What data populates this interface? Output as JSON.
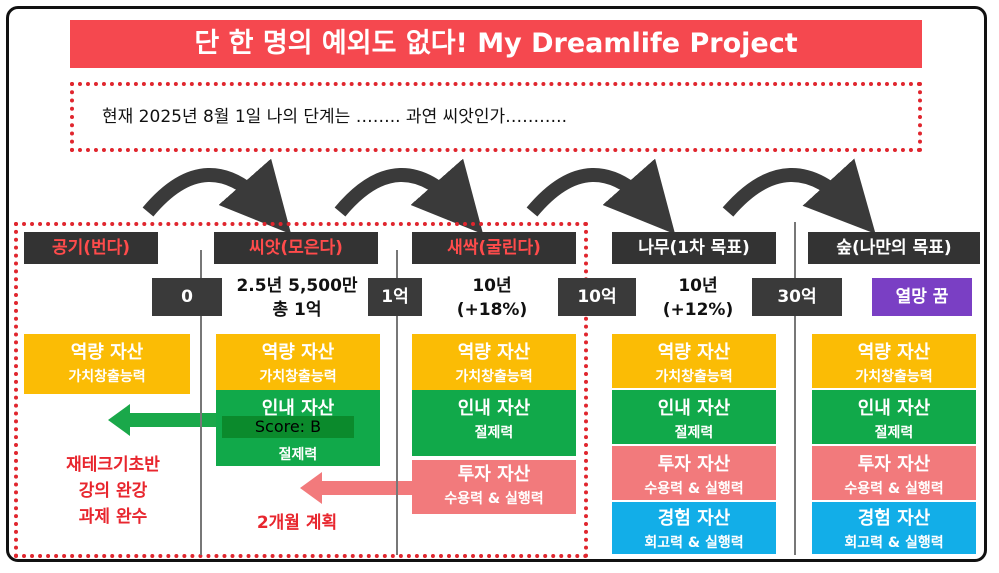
{
  "banner": "단 한 명의 예외도 없다! My Dreamlife Project",
  "status_text": "현재 2025년 8월 1일 나의 단계는 …….. 과연 씨앗인가………..",
  "stages": [
    {
      "title": "공기(번다)"
    },
    {
      "title": "씨앗(모은다)"
    },
    {
      "title": "새싹(굴린다)"
    },
    {
      "title": "나무(1차 목표)"
    },
    {
      "title": "숲(나만의 목표)"
    }
  ],
  "tags": [
    "0",
    "1억",
    "10억",
    "30억",
    "열망 꿈"
  ],
  "stage_info": {
    "seed_line1": "2.5년 5,500만",
    "seed_line2": "총 1억",
    "sprout_line1": "10년",
    "sprout_line2": "(+18%)",
    "tree_line1": "10년",
    "tree_line2": "(+12%)"
  },
  "cards": {
    "capability": {
      "title": "역량 자산",
      "sub": "가치창출능력"
    },
    "patience": {
      "title": "인내 자산",
      "sub": "절제력"
    },
    "investment": {
      "title": "투자 자산",
      "sub": "수용력 & 실행력"
    },
    "experience": {
      "title": "경험 자산",
      "sub": "회고력 & 실행력"
    }
  },
  "score": "Score: B",
  "air_tasks": [
    "재테크기초반",
    "강의 완강",
    "과제 완수"
  ],
  "plan": "2개월 계획",
  "colors": {
    "banner": "#f5484f",
    "yellow": "#fbbc05",
    "green": "#11a94a",
    "pink": "#f27a7c",
    "blue": "#12aee8",
    "purple": "#7a3fc4",
    "dark": "#333333",
    "alert_red": "#e8262e"
  }
}
